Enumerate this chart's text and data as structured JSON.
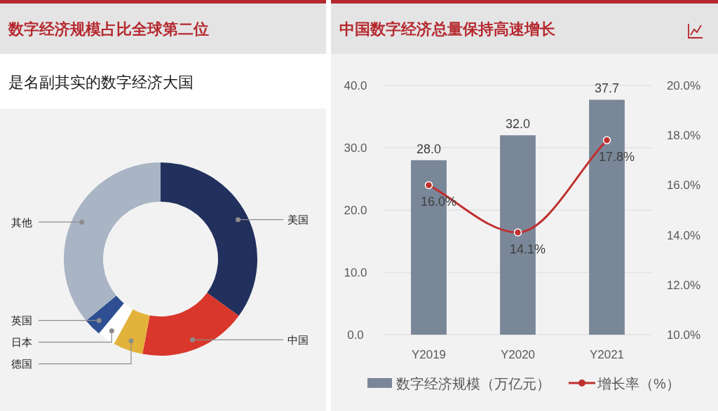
{
  "chart_data": [
    {
      "type": "donut",
      "title": "数字经济规模占比全球第二位",
      "subtitle": "是名副其实的数字经济大国",
      "categories": [
        "美国",
        "中国",
        "德国",
        "日本",
        "英国",
        "其他"
      ],
      "values": [
        35,
        18,
        5,
        3,
        3,
        36
      ],
      "colors": [
        "#22305e",
        "#d9372b",
        "#e2b23a",
        "#ffffff",
        "#2f4f92",
        "#a9b4c4"
      ]
    },
    {
      "type": "bar",
      "title": "中国数字经济总量保持高速增长",
      "categories": [
        "Y2019",
        "Y2020",
        "Y2021"
      ],
      "series": [
        {
          "name": "数字经济规模（万亿元）",
          "color": "#7a8799",
          "values": [
            28.0,
            32.0,
            37.7
          ],
          "value_labels": [
            "28.0",
            "32.0",
            "37.7"
          ]
        },
        {
          "name": "增长率（%）",
          "type": "line",
          "axis": "y2",
          "marker": "circle",
          "color": "#c0302f",
          "values": [
            16.0,
            14.1,
            17.8
          ],
          "value_labels": [
            "16.0%",
            "14.1%",
            "17.8%"
          ]
        }
      ],
      "ylim": [
        0,
        40
      ],
      "yticks": [
        {
          "value": 0,
          "label": "0.0"
        },
        {
          "value": 10,
          "label": "10.0"
        },
        {
          "value": 20,
          "label": "20.0"
        },
        {
          "value": 30,
          "label": "30.0"
        },
        {
          "value": 40,
          "label": "40.0"
        }
      ],
      "y2lim": [
        10,
        20
      ],
      "y2ticks": [
        {
          "value": 10,
          "label": "10.0%"
        },
        {
          "value": 12,
          "label": "12.0%"
        },
        {
          "value": 14,
          "label": "14.0%"
        },
        {
          "value": 16,
          "label": "16.0%"
        },
        {
          "value": 18,
          "label": "18.0%"
        },
        {
          "value": 20,
          "label": "20.0%"
        }
      ],
      "grid": "y",
      "legend": "bottom"
    }
  ]
}
